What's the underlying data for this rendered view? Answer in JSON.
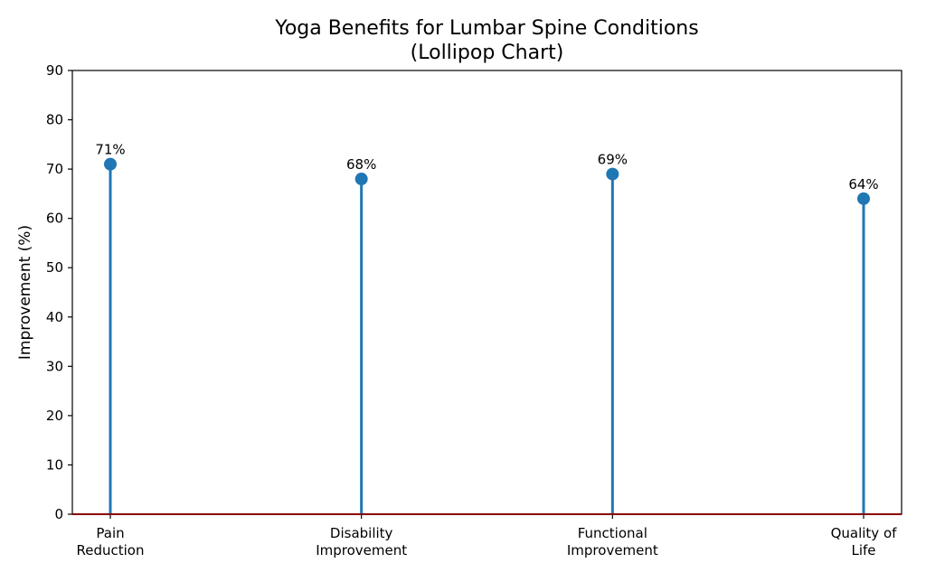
{
  "chart_data": {
    "type": "lollipop",
    "title_lines": [
      "Yoga Benefits for Lumbar Spine Conditions",
      "(Lollipop Chart)"
    ],
    "xlabel": "",
    "ylabel": "Improvement (%)",
    "categories": [
      [
        "Pain",
        "Reduction"
      ],
      [
        "Disability",
        "Improvement"
      ],
      [
        "Functional",
        "Improvement"
      ],
      [
        "Quality of",
        "Life"
      ]
    ],
    "values": [
      71,
      68,
      69,
      64
    ],
    "data_labels": [
      "71%",
      "68%",
      "69%",
      "64%"
    ],
    "ylim": [
      0,
      90
    ],
    "yticks": [
      0,
      10,
      20,
      30,
      40,
      50,
      60,
      70,
      80,
      90
    ],
    "grid": false,
    "legend": "none",
    "colors": {
      "stem": "#1f77b4",
      "marker": "#1f77b4",
      "baseline": "#8b0000",
      "axes": "#000000"
    }
  }
}
